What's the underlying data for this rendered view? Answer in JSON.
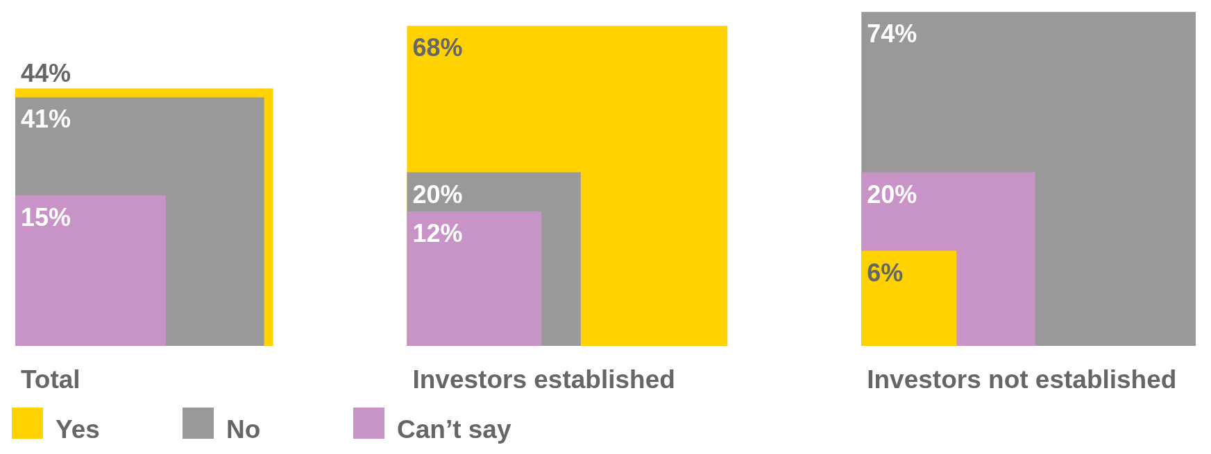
{
  "chart_data": {
    "type": "other",
    "categories": [
      "Total",
      "Investors established",
      "Investors not established"
    ],
    "series": [
      {
        "name": "Yes",
        "color": "#ffd200",
        "values": [
          44,
          68,
          6
        ],
        "value_labels": [
          "44%",
          "68%",
          "6%"
        ]
      },
      {
        "name": "No",
        "color": "#999999",
        "values": [
          41,
          20,
          74
        ],
        "value_labels": [
          "41%",
          "20%",
          "74%"
        ]
      },
      {
        "name": "Can’t say",
        "color": "#c893c6",
        "values": [
          15,
          12,
          20
        ],
        "value_labels": [
          "15%",
          "12%",
          "20%"
        ]
      }
    ],
    "legend": "bottom left"
  }
}
